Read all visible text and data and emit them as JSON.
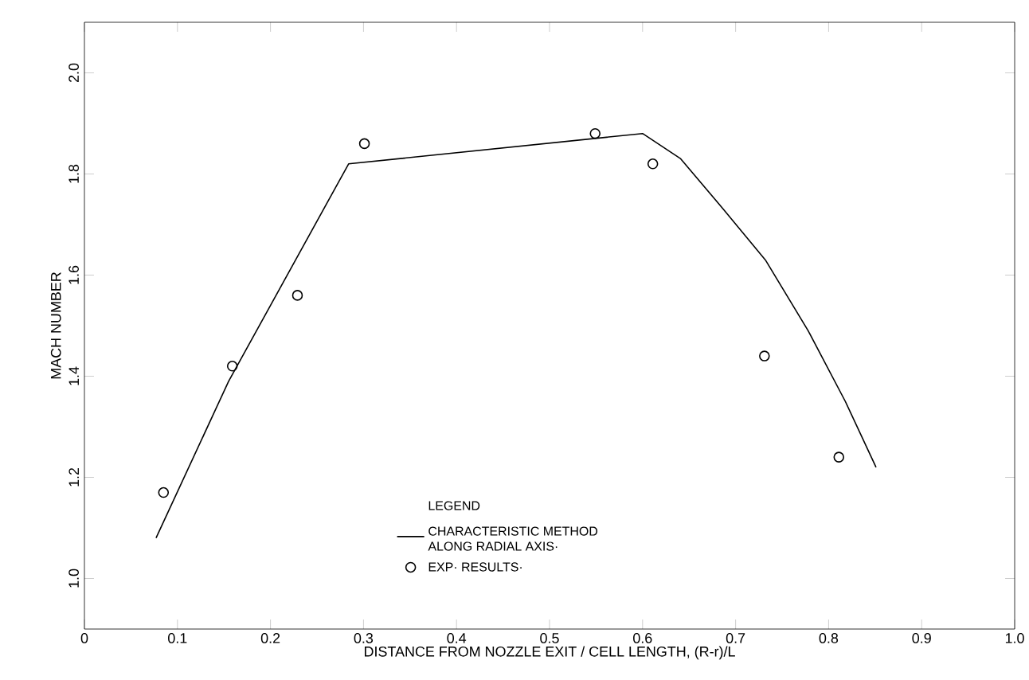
{
  "chart_data": {
    "type": "line",
    "xlabel": "DISTANCE FROM NOZZLE EXIT / CELL LENGTH, (R-r)/L",
    "ylabel": "MACH NUMBER",
    "legend_title": "LEGEND",
    "xlim": [
      0,
      1.0
    ],
    "ylim": [
      0.9,
      2.1
    ],
    "xticks": [
      0,
      0.1,
      0.2,
      0.3,
      0.4,
      0.5,
      0.6,
      0.7,
      0.8,
      0.9,
      {
        "value": 1.0,
        "label": "1.0"
      }
    ],
    "yticks": [
      {
        "value": 1.0,
        "label": "1.0"
      },
      1.2,
      1.4,
      1.6,
      1.8,
      {
        "value": 2.0,
        "label": "2.0"
      }
    ],
    "grid": false,
    "legend": "bottom",
    "series": [
      {
        "name": "CHARACTERISTIC METHOD ALONG RADIAL AXIS·",
        "color": "#000000",
        "marker": "none",
        "x": [
          0.077,
          0.155,
          0.284,
          0.6,
          0.641,
          0.687,
          0.732,
          0.778,
          0.818,
          0.851
        ],
        "values": [
          1.08,
          1.39,
          1.82,
          1.88,
          1.83,
          1.73,
          1.63,
          1.49,
          1.35,
          1.22
        ]
      },
      {
        "name": "EXP· RESULTS·",
        "type": "scatter",
        "color": "#000000",
        "marker": "circle",
        "x": [
          0.085,
          0.159,
          0.229,
          0.301,
          0.549,
          0.611,
          0.731,
          0.811
        ],
        "values": [
          1.17,
          1.42,
          1.56,
          1.86,
          1.88,
          1.82,
          1.44,
          1.24
        ]
      }
    ]
  }
}
